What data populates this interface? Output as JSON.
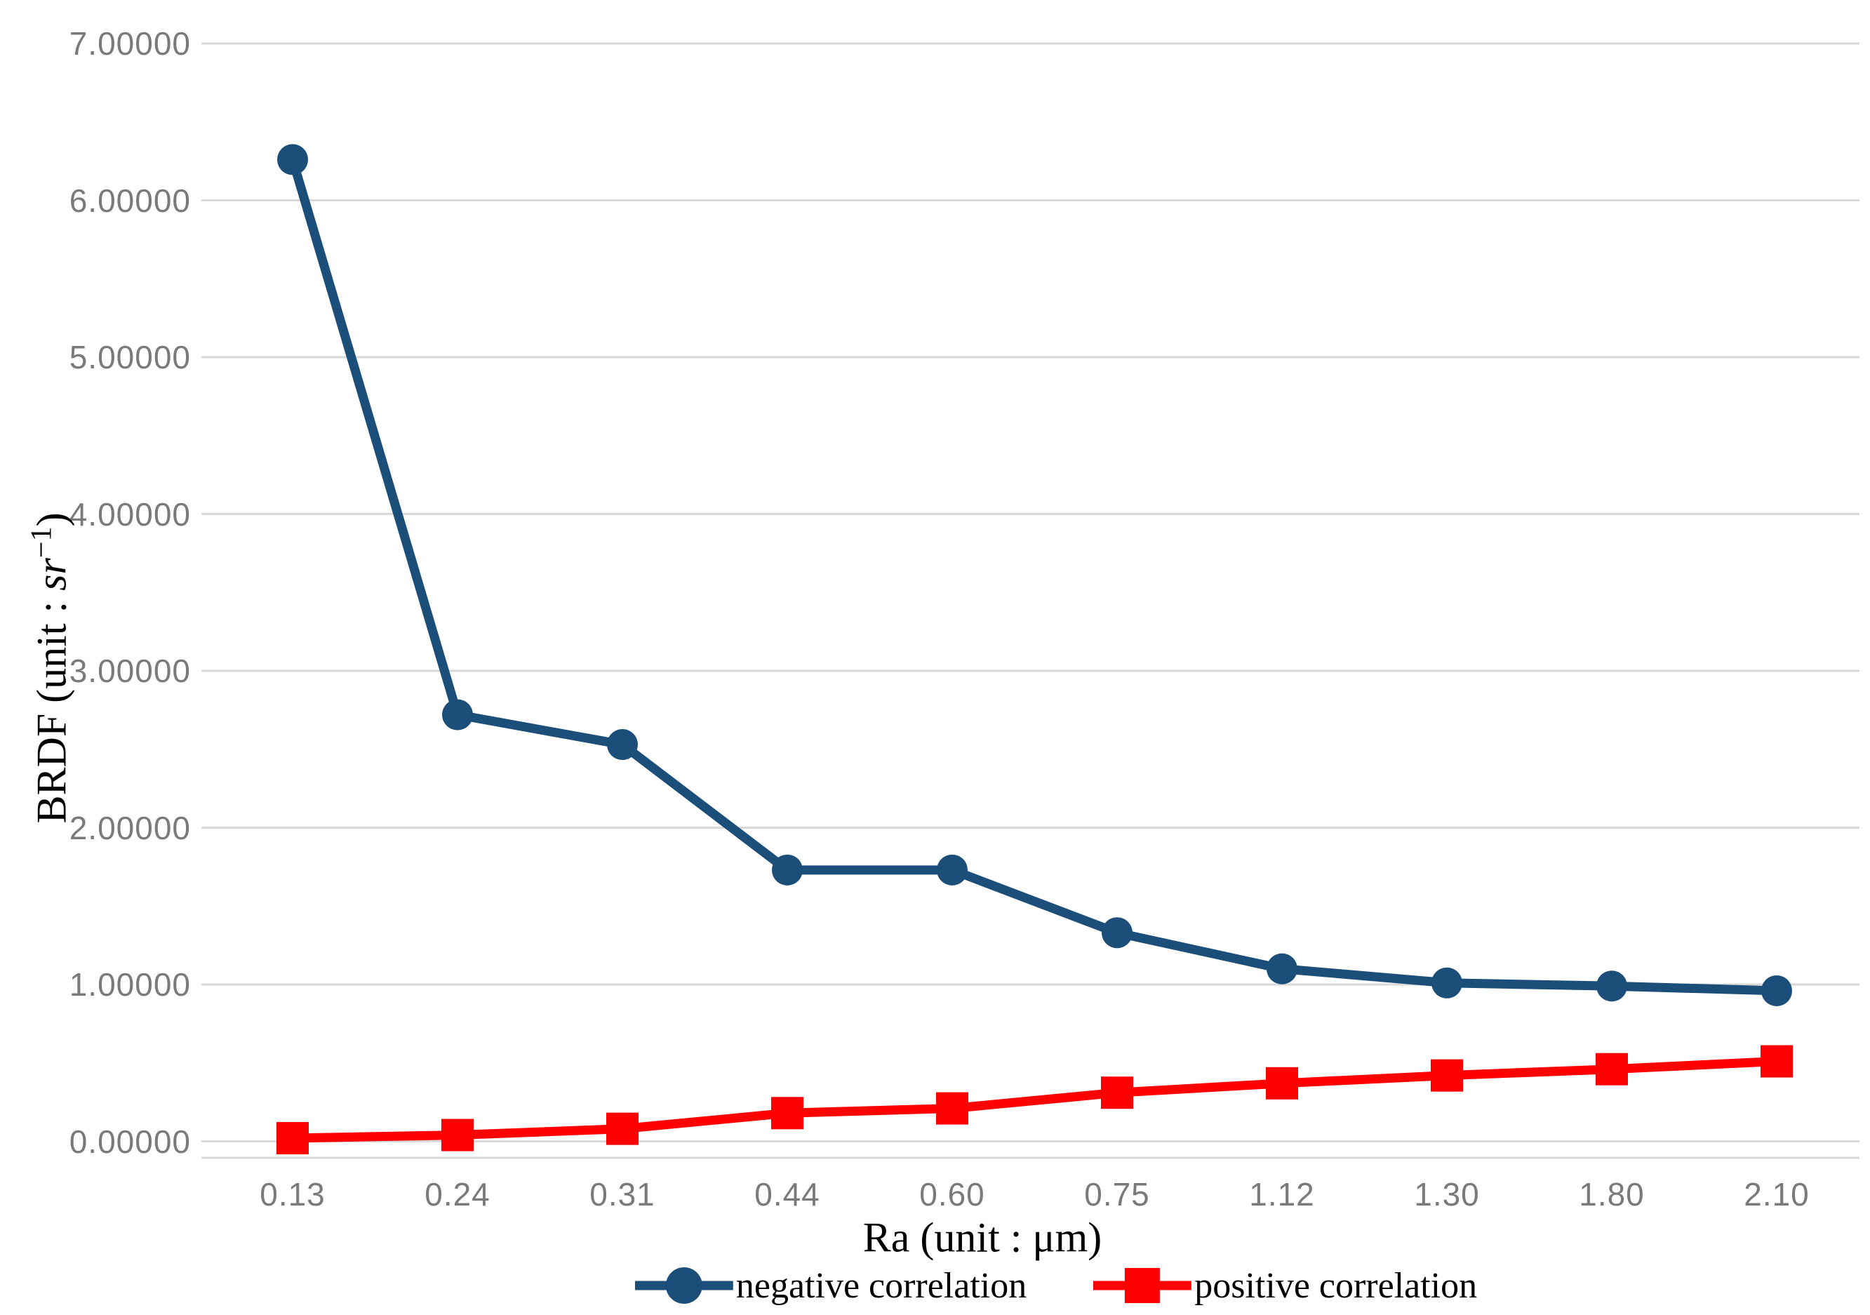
{
  "chart_data": {
    "type": "line",
    "title": "",
    "xlabel": "Ra (unit : μm)",
    "ylabel": {
      "prefix": "BRDF (unit : ",
      "unit": "sr",
      "exponent": "−1",
      "suffix": ")"
    },
    "categories": [
      "0.13",
      "0.24",
      "0.31",
      "0.44",
      "0.60",
      "0.75",
      "1.12",
      "1.30",
      "1.80",
      "2.10"
    ],
    "y_ticks": [
      "0.00000",
      "1.00000",
      "2.00000",
      "3.00000",
      "4.00000",
      "5.00000",
      "6.00000",
      "7.00000"
    ],
    "ylim": [
      0,
      7
    ],
    "grid": true,
    "legend_position": "bottom",
    "series": [
      {
        "name": "negative correlation",
        "color": "#1b4e79",
        "marker": "circle",
        "values": [
          6.26,
          2.72,
          2.53,
          1.73,
          1.73,
          1.33,
          1.1,
          1.01,
          0.99,
          0.96
        ]
      },
      {
        "name": "positive correlation",
        "color": "#fe0000",
        "marker": "square",
        "values": [
          0.02,
          0.04,
          0.08,
          0.18,
          0.21,
          0.31,
          0.37,
          0.42,
          0.46,
          0.51
        ]
      }
    ]
  },
  "styles": {
    "grid_color": "#d9d9d9",
    "axis_line_color": "#d9d9d9",
    "tick_text_color": "#7a7a7a",
    "title_text_color": "#000000"
  }
}
